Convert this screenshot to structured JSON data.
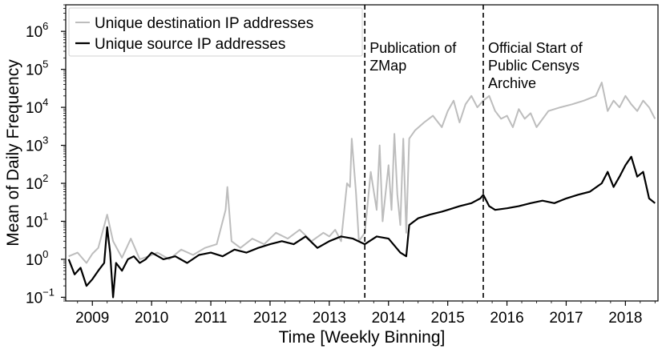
{
  "chart_data": {
    "type": "line",
    "xlabel": "Time [Weekly Binning]",
    "ylabel": "Mean of Daily Frequency",
    "yscale": "log",
    "ylim": [
      0.08,
      5000000
    ],
    "xlim": [
      2008.55,
      2018.55
    ],
    "grid": false,
    "legend_position": "top-left",
    "x_ticks": [
      {
        "value": 2009,
        "label": "2009"
      },
      {
        "value": 2010,
        "label": "2010"
      },
      {
        "value": 2011,
        "label": "2011"
      },
      {
        "value": 2012,
        "label": "2012"
      },
      {
        "value": 2013,
        "label": "2013"
      },
      {
        "value": 2014,
        "label": "2014"
      },
      {
        "value": 2015,
        "label": "2015"
      },
      {
        "value": 2016,
        "label": "2016"
      },
      {
        "value": 2017,
        "label": "2017"
      },
      {
        "value": 2018,
        "label": "2018"
      }
    ],
    "y_ticks": [
      {
        "value": 0.1,
        "base": "10",
        "exp": "−1"
      },
      {
        "value": 1,
        "base": "10",
        "exp": "0"
      },
      {
        "value": 10,
        "base": "10",
        "exp": "1"
      },
      {
        "value": 100,
        "base": "10",
        "exp": "2"
      },
      {
        "value": 1000,
        "base": "10",
        "exp": "3"
      },
      {
        "value": 10000,
        "base": "10",
        "exp": "4"
      },
      {
        "value": 100000,
        "base": "10",
        "exp": "5"
      },
      {
        "value": 1000000,
        "base": "10",
        "exp": "6"
      }
    ],
    "annotations": [
      {
        "x": 2013.6,
        "lines": [
          "Publication of",
          "ZMap"
        ]
      },
      {
        "x": 2015.6,
        "lines": [
          "Official Start of",
          "Public Censys",
          "Archive"
        ]
      }
    ],
    "series": [
      {
        "name": "Unique destination IP addresses",
        "color": "#bdbdbd",
        "x": [
          2008.6,
          2008.75,
          2008.9,
          2009.0,
          2009.1,
          2009.25,
          2009.35,
          2009.5,
          2009.65,
          2009.8,
          2009.95,
          2010.1,
          2010.3,
          2010.5,
          2010.7,
          2010.9,
          2011.1,
          2011.25,
          2011.28,
          2011.35,
          2011.5,
          2011.7,
          2011.9,
          2012.1,
          2012.3,
          2012.5,
          2012.7,
          2012.9,
          2013.0,
          2013.1,
          2013.2,
          2013.3,
          2013.35,
          2013.38,
          2013.45,
          2013.5,
          2013.6,
          2013.7,
          2013.8,
          2013.85,
          2013.9,
          2014.0,
          2014.05,
          2014.1,
          2014.15,
          2014.2,
          2014.25,
          2014.3,
          2014.35,
          2014.45,
          2014.6,
          2014.75,
          2014.9,
          2015.0,
          2015.1,
          2015.2,
          2015.3,
          2015.4,
          2015.5,
          2015.6,
          2015.7,
          2015.8,
          2015.9,
          2016.0,
          2016.1,
          2016.2,
          2016.3,
          2016.4,
          2016.5,
          2016.7,
          2016.9,
          2017.1,
          2017.3,
          2017.5,
          2017.6,
          2017.7,
          2017.8,
          2017.9,
          2018.0,
          2018.1,
          2018.2,
          2018.3,
          2018.4,
          2018.5
        ],
        "values": [
          1.2,
          1.5,
          0.8,
          1.4,
          2.0,
          15,
          3.0,
          1.1,
          3.5,
          1.0,
          1.2,
          1.5,
          1.0,
          1.8,
          1.3,
          2.0,
          2.5,
          20,
          80,
          3.0,
          2.0,
          3.5,
          2.5,
          5.0,
          3.5,
          6.0,
          3.0,
          5.0,
          4.0,
          6.0,
          3.0,
          100,
          80,
          1500,
          60,
          3.0,
          5.0,
          200,
          20,
          1000,
          10,
          300,
          20,
          2000,
          50,
          8,
          1500,
          5,
          1500,
          2500,
          4000,
          6000,
          3000,
          8000,
          15000,
          4000,
          12000,
          20000,
          10000,
          15000,
          20000,
          8000,
          5000,
          6000,
          3000,
          9000,
          5000,
          7000,
          3000,
          8000,
          10000,
          12000,
          15000,
          20000,
          45000,
          8000,
          15000,
          10000,
          20000,
          12000,
          8000,
          15000,
          10000,
          5000
        ]
      },
      {
        "name": "Unique source IP addresses",
        "color": "#000000",
        "x": [
          2008.6,
          2008.7,
          2008.8,
          2008.9,
          2009.0,
          2009.1,
          2009.2,
          2009.25,
          2009.3,
          2009.35,
          2009.4,
          2009.5,
          2009.6,
          2009.7,
          2009.8,
          2009.9,
          2010.0,
          2010.2,
          2010.4,
          2010.6,
          2010.8,
          2011.0,
          2011.2,
          2011.4,
          2011.6,
          2011.8,
          2012.0,
          2012.2,
          2012.4,
          2012.6,
          2012.8,
          2013.0,
          2013.2,
          2013.4,
          2013.6,
          2013.8,
          2014.0,
          2014.2,
          2014.3,
          2014.35,
          2014.5,
          2014.7,
          2014.9,
          2015.0,
          2015.2,
          2015.4,
          2015.55,
          2015.6,
          2015.7,
          2015.8,
          2016.0,
          2016.2,
          2016.4,
          2016.6,
          2016.8,
          2017.0,
          2017.2,
          2017.4,
          2017.6,
          2017.7,
          2017.8,
          2017.9,
          2018.0,
          2018.1,
          2018.2,
          2018.3,
          2018.4,
          2018.5
        ],
        "values": [
          1.0,
          0.4,
          0.6,
          0.2,
          0.3,
          0.5,
          0.8,
          7.0,
          1.5,
          0.1,
          0.8,
          0.5,
          1.0,
          1.2,
          0.8,
          1.0,
          1.5,
          1.0,
          1.2,
          0.8,
          1.3,
          1.5,
          1.2,
          1.8,
          1.5,
          2.0,
          2.5,
          3.0,
          2.5,
          4.0,
          2.0,
          3.0,
          4.0,
          3.5,
          2.5,
          4.0,
          3.5,
          1.5,
          1.2,
          8.0,
          12,
          15,
          18,
          20,
          25,
          30,
          40,
          50,
          25,
          20,
          22,
          25,
          30,
          35,
          30,
          40,
          50,
          60,
          100,
          200,
          80,
          150,
          300,
          500,
          150,
          200,
          40,
          30
        ]
      }
    ]
  }
}
